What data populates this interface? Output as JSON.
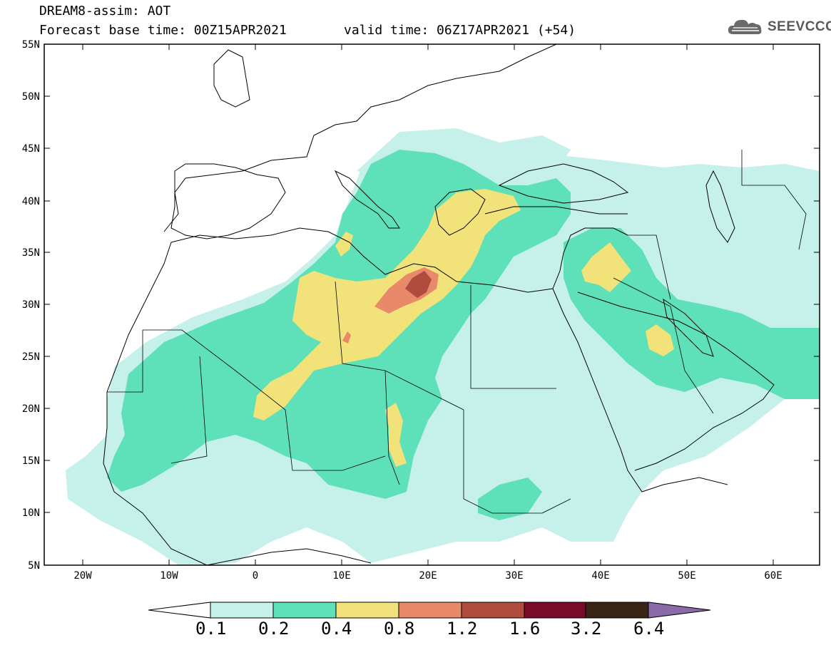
{
  "header": {
    "title": "DREAM8-assim: AOT",
    "base_time": "Forecast base time: 00Z15APR2021",
    "valid_time": "valid time: 06Z17APR2021 (+54)",
    "logo_text": "SEEVCCC"
  },
  "map": {
    "lat_labels": [
      "55N",
      "50N",
      "45N",
      "40N",
      "35N",
      "30N",
      "25N",
      "20N",
      "15N",
      "10N",
      "5N"
    ],
    "lon_labels": [
      "20W",
      "10W",
      "0",
      "10E",
      "20E",
      "30E",
      "40E",
      "50E",
      "60E"
    ],
    "lat_range": [
      5,
      55
    ],
    "lon_range": [
      -25,
      65
    ]
  },
  "colorbar": {
    "labels": [
      "0.1",
      "0.2",
      "0.4",
      "0.8",
      "1.2",
      "1.6",
      "3.2",
      "6.4"
    ],
    "colors": {
      "under": "#ffffff",
      "c1": "#c6f0ea",
      "c2": "#5ee0b8",
      "c3": "#f2e27a",
      "c4": "#e8896a",
      "c5": "#b04c3e",
      "c6": "#7a0a2a",
      "c7": "#3a2416",
      "over": "#8a6aa8"
    }
  }
}
